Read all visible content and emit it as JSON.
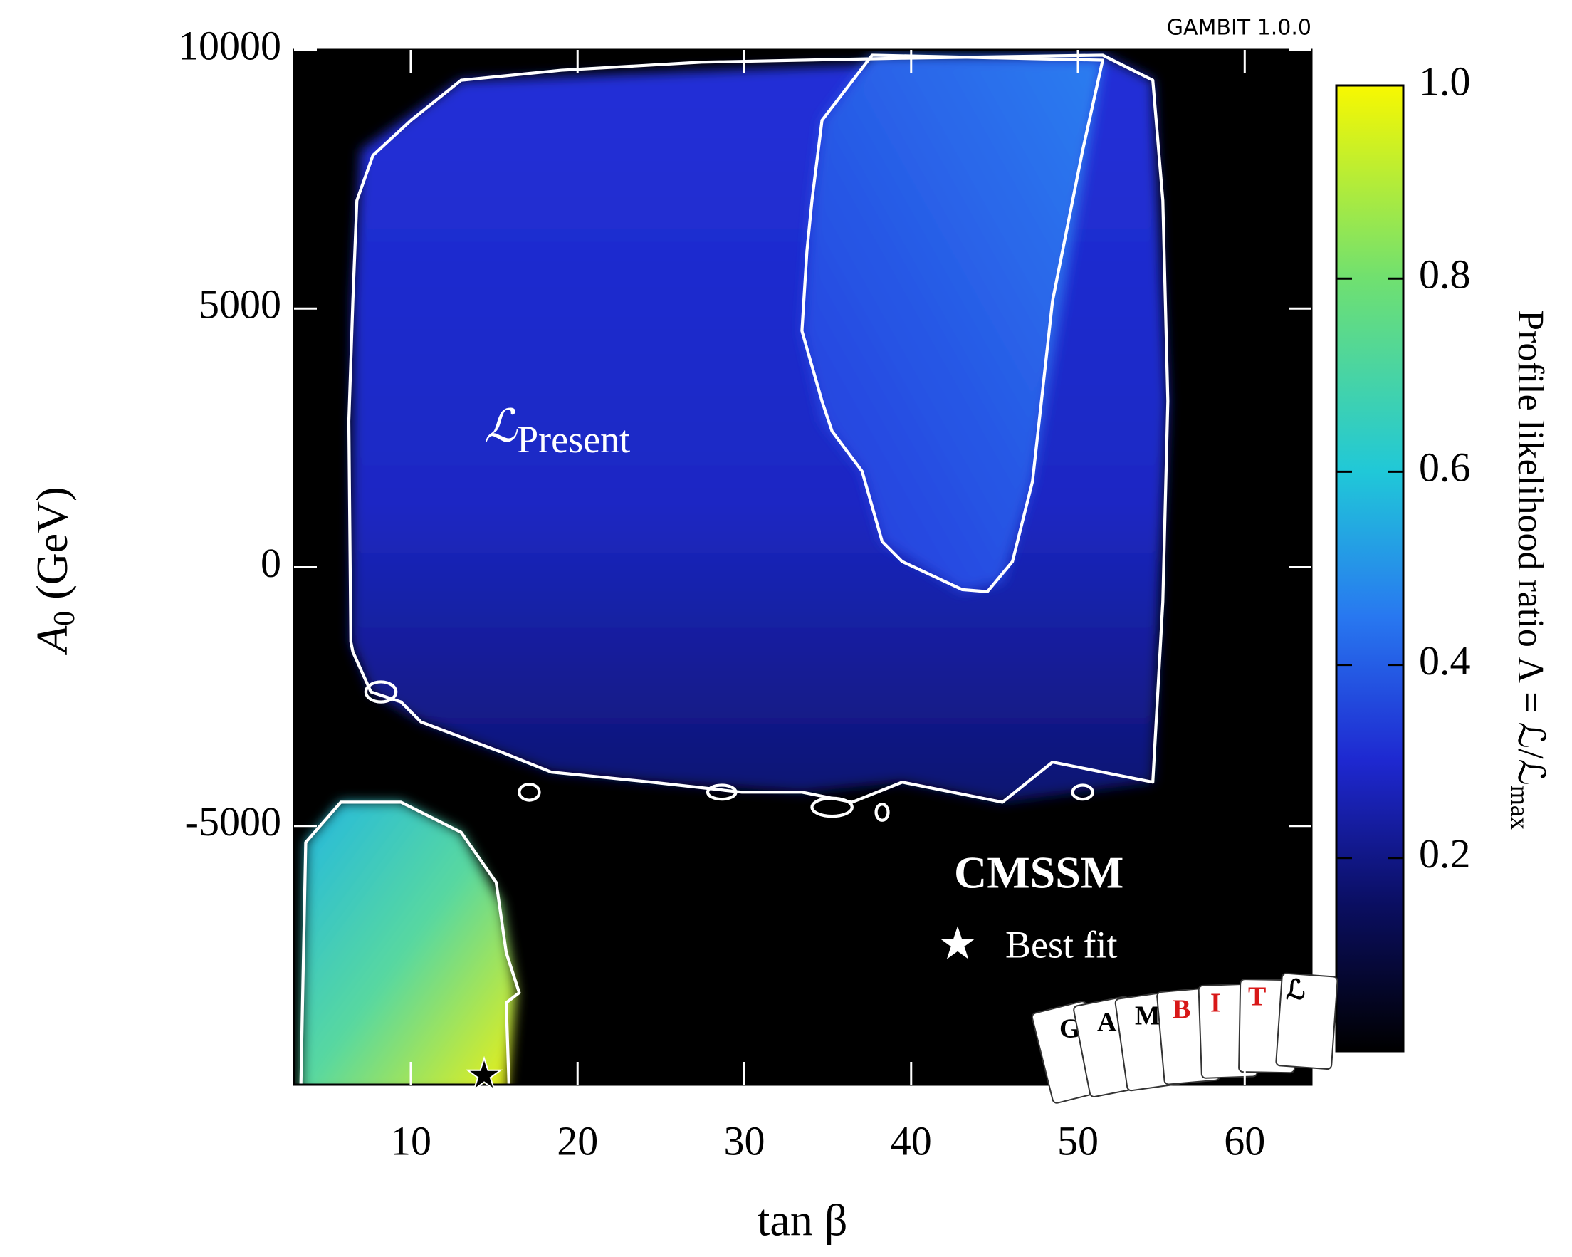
{
  "chart_data": {
    "type": "heatmap",
    "watermark": "GAMBIT 1.0.0",
    "x_label": "tan β",
    "y_label": "A",
    "y_label_subscript": "0",
    "y_label_unit": "(GeV)",
    "colorbar_label": "Profile likelihood ratio Λ = ℒ/ℒ",
    "colorbar_label_subscript": "max",
    "annotation": "ℒ",
    "annotation_subscript": "Present",
    "model_label": "CMSSM",
    "legend_label": "Best fit",
    "logo_letters": [
      "G",
      "A",
      "M",
      "B",
      "I",
      "T",
      "ℒ"
    ],
    "xlim": [
      3,
      64
    ],
    "ylim": [
      -10000,
      10000
    ],
    "xticks": [
      10,
      20,
      30,
      40,
      50,
      60
    ],
    "yticks": [
      -5000,
      0,
      5000,
      10000
    ],
    "clim": [
      0,
      1
    ],
    "cticks": [
      0.2,
      0.4,
      0.6,
      0.8,
      {
        "value": 1.0,
        "label": "1.0"
      }
    ],
    "best_fit": {
      "x": 14.4,
      "y": -9900
    }
  }
}
